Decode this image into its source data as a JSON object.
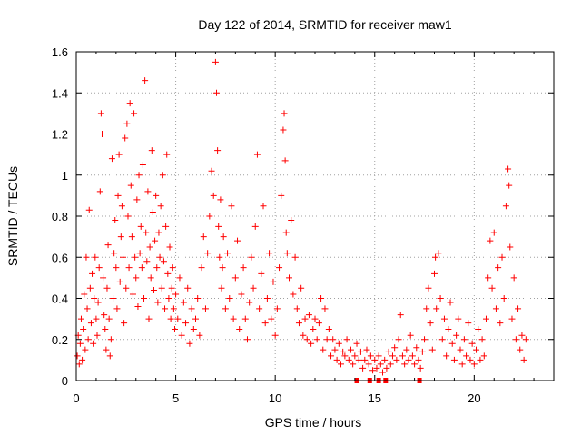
{
  "chart_data": {
    "type": "scatter",
    "title": "Day 122 of 2014, SRMTID for receiver maw1",
    "xlabel": "GPS time / hours",
    "ylabel": "SRMTID / TECUs",
    "xlim": [
      0,
      24
    ],
    "ylim": [
      0,
      1.6
    ],
    "x_ticks": [
      0,
      5,
      10,
      15,
      20
    ],
    "x_tick_labels": [
      "0",
      "5",
      "10",
      "15",
      "20"
    ],
    "y_ticks": [
      0,
      0.2,
      0.4,
      0.6,
      0.8,
      1,
      1.2,
      1.4,
      1.6
    ],
    "y_tick_labels": [
      "0",
      "0.2",
      "0.4",
      "0.6",
      "0.8",
      "1",
      "1.2",
      "1.4",
      "1.6"
    ],
    "grid": true,
    "marker": "plus",
    "color": "#ff0000",
    "series": [
      {
        "name": "SRMTID",
        "points": [
          [
            0.05,
            0.12
          ],
          [
            0.1,
            0.22
          ],
          [
            0.15,
            0.08
          ],
          [
            0.2,
            0.18
          ],
          [
            0.25,
            0.3
          ],
          [
            0.3,
            0.1
          ],
          [
            0.35,
            0.25
          ],
          [
            0.4,
            0.42
          ],
          [
            0.45,
            0.15
          ],
          [
            0.5,
            0.6
          ],
          [
            0.55,
            0.35
          ],
          [
            0.6,
            0.2
          ],
          [
            0.65,
            0.83
          ],
          [
            0.7,
            0.45
          ],
          [
            0.75,
            0.28
          ],
          [
            0.8,
            0.52
          ],
          [
            0.85,
            0.18
          ],
          [
            0.9,
            0.4
          ],
          [
            0.95,
            0.6
          ],
          [
            1.0,
            0.3
          ],
          [
            1.05,
            0.22
          ],
          [
            1.1,
            0.38
          ],
          [
            1.15,
            0.55
          ],
          [
            1.2,
            0.92
          ],
          [
            1.25,
            1.3
          ],
          [
            1.3,
            1.2
          ],
          [
            1.35,
            0.5
          ],
          [
            1.4,
            0.32
          ],
          [
            1.45,
            0.25
          ],
          [
            1.5,
            0.15
          ],
          [
            1.55,
            0.45
          ],
          [
            1.6,
            0.66
          ],
          [
            1.65,
            0.3
          ],
          [
            1.7,
            0.12
          ],
          [
            1.75,
            0.2
          ],
          [
            1.8,
            1.08
          ],
          [
            1.85,
            0.4
          ],
          [
            1.9,
            0.62
          ],
          [
            1.95,
            0.78
          ],
          [
            2.0,
            0.55
          ],
          [
            2.05,
            0.35
          ],
          [
            2.1,
            0.9
          ],
          [
            2.15,
            1.1
          ],
          [
            2.2,
            0.48
          ],
          [
            2.25,
            0.7
          ],
          [
            2.3,
            0.85
          ],
          [
            2.35,
            0.6
          ],
          [
            2.4,
            0.28
          ],
          [
            2.45,
            1.18
          ],
          [
            2.5,
            0.45
          ],
          [
            2.55,
            1.25
          ],
          [
            2.6,
            0.8
          ],
          [
            2.65,
            0.55
          ],
          [
            2.7,
            1.35
          ],
          [
            2.75,
            0.95
          ],
          [
            2.8,
            0.7
          ],
          [
            2.85,
            0.42
          ],
          [
            2.9,
            1.3
          ],
          [
            2.95,
            0.6
          ],
          [
            3.0,
            0.5
          ],
          [
            3.05,
            0.88
          ],
          [
            3.1,
            0.36
          ],
          [
            3.15,
            1.0
          ],
          [
            3.2,
            0.62
          ],
          [
            3.25,
            0.75
          ],
          [
            3.3,
            0.55
          ],
          [
            3.35,
            1.05
          ],
          [
            3.4,
            0.4
          ],
          [
            3.45,
            1.46
          ],
          [
            3.5,
            0.72
          ],
          [
            3.55,
            0.58
          ],
          [
            3.6,
            0.92
          ],
          [
            3.65,
            0.3
          ],
          [
            3.7,
            0.65
          ],
          [
            3.75,
            0.5
          ],
          [
            3.8,
            1.12
          ],
          [
            3.85,
            0.82
          ],
          [
            3.9,
            0.44
          ],
          [
            3.95,
            0.68
          ],
          [
            4.0,
            0.9
          ],
          [
            4.05,
            0.55
          ],
          [
            4.1,
            0.38
          ],
          [
            4.15,
            0.72
          ],
          [
            4.2,
            0.6
          ],
          [
            4.25,
            0.85
          ],
          [
            4.3,
            0.45
          ],
          [
            4.35,
            1.0
          ],
          [
            4.4,
            0.58
          ],
          [
            4.45,
            0.35
          ],
          [
            4.5,
            0.75
          ],
          [
            4.55,
            1.1
          ],
          [
            4.6,
            0.52
          ],
          [
            4.65,
            0.4
          ],
          [
            4.7,
            0.65
          ],
          [
            4.75,
            0.3
          ],
          [
            4.8,
            0.45
          ],
          [
            4.85,
            0.55
          ],
          [
            4.9,
            0.35
          ],
          [
            4.95,
            0.25
          ],
          [
            5.0,
            0.42
          ],
          [
            5.1,
            0.3
          ],
          [
            5.2,
            0.5
          ],
          [
            5.3,
            0.22
          ],
          [
            5.4,
            0.38
          ],
          [
            5.5,
            0.28
          ],
          [
            5.6,
            0.45
          ],
          [
            5.7,
            0.18
          ],
          [
            5.8,
            0.35
          ],
          [
            5.9,
            0.25
          ],
          [
            6.0,
            0.3
          ],
          [
            6.1,
            0.4
          ],
          [
            6.2,
            0.22
          ],
          [
            6.3,
            0.55
          ],
          [
            6.4,
            0.7
          ],
          [
            6.5,
            0.35
          ],
          [
            6.6,
            0.62
          ],
          [
            6.7,
            0.8
          ],
          [
            6.8,
            1.02
          ],
          [
            6.9,
            0.9
          ],
          [
            7.0,
            1.55
          ],
          [
            7.05,
            1.4
          ],
          [
            7.1,
            1.12
          ],
          [
            7.15,
            0.75
          ],
          [
            7.2,
            0.6
          ],
          [
            7.25,
            0.88
          ],
          [
            7.3,
            0.45
          ],
          [
            7.35,
            0.55
          ],
          [
            7.4,
            0.7
          ],
          [
            7.5,
            0.35
          ],
          [
            7.6,
            0.62
          ],
          [
            7.7,
            0.4
          ],
          [
            7.8,
            0.85
          ],
          [
            7.9,
            0.3
          ],
          [
            8.0,
            0.5
          ],
          [
            8.1,
            0.68
          ],
          [
            8.2,
            0.25
          ],
          [
            8.3,
            0.42
          ],
          [
            8.4,
            0.55
          ],
          [
            8.5,
            0.3
          ],
          [
            8.6,
            0.2
          ],
          [
            8.7,
            0.38
          ],
          [
            8.8,
            0.6
          ],
          [
            8.9,
            0.45
          ],
          [
            9.0,
            0.75
          ],
          [
            9.1,
            1.1
          ],
          [
            9.2,
            0.35
          ],
          [
            9.3,
            0.52
          ],
          [
            9.4,
            0.85
          ],
          [
            9.5,
            0.28
          ],
          [
            9.6,
            0.4
          ],
          [
            9.7,
            0.62
          ],
          [
            9.8,
            0.3
          ],
          [
            9.9,
            0.48
          ],
          [
            10.0,
            0.22
          ],
          [
            10.1,
            0.35
          ],
          [
            10.2,
            0.55
          ],
          [
            10.3,
            0.9
          ],
          [
            10.4,
            1.22
          ],
          [
            10.45,
            1.3
          ],
          [
            10.5,
            1.07
          ],
          [
            10.55,
            0.72
          ],
          [
            10.6,
            0.62
          ],
          [
            10.7,
            0.5
          ],
          [
            10.8,
            0.78
          ],
          [
            10.9,
            0.42
          ],
          [
            11.0,
            0.6
          ],
          [
            11.1,
            0.35
          ],
          [
            11.2,
            0.28
          ],
          [
            11.3,
            0.45
          ],
          [
            11.4,
            0.22
          ],
          [
            11.5,
            0.3
          ],
          [
            11.6,
            0.2
          ],
          [
            11.7,
            0.32
          ],
          [
            11.8,
            0.18
          ],
          [
            11.9,
            0.25
          ],
          [
            12.0,
            0.3
          ],
          [
            12.1,
            0.2
          ],
          [
            12.2,
            0.28
          ],
          [
            12.3,
            0.4
          ],
          [
            12.4,
            0.15
          ],
          [
            12.5,
            0.35
          ],
          [
            12.6,
            0.2
          ],
          [
            12.7,
            0.25
          ],
          [
            12.8,
            0.12
          ],
          [
            12.9,
            0.2
          ],
          [
            13.0,
            0.15
          ],
          [
            13.1,
            0.1
          ],
          [
            13.2,
            0.18
          ],
          [
            13.3,
            0.08
          ],
          [
            13.4,
            0.14
          ],
          [
            13.5,
            0.12
          ],
          [
            13.6,
            0.2
          ],
          [
            13.7,
            0.1
          ],
          [
            13.8,
            0.15
          ],
          [
            13.9,
            0.08
          ],
          [
            14.0,
            0.12
          ],
          [
            14.1,
            0.18
          ],
          [
            14.2,
            0.1
          ],
          [
            14.3,
            0.14
          ],
          [
            14.4,
            0.06
          ],
          [
            14.5,
            0.1
          ],
          [
            14.6,
            0.15
          ],
          [
            14.7,
            0.08
          ],
          [
            14.8,
            0.12
          ],
          [
            14.9,
            0.05
          ],
          [
            15.0,
            0.1
          ],
          [
            15.1,
            0.06
          ],
          [
            15.2,
            0.12
          ],
          [
            15.3,
            0.08
          ],
          [
            15.4,
            0.04
          ],
          [
            15.5,
            0.1
          ],
          [
            15.6,
            0.06
          ],
          [
            15.7,
            0.14
          ],
          [
            15.8,
            0.08
          ],
          [
            15.9,
            0.12
          ],
          [
            16.0,
            0.16
          ],
          [
            16.1,
            0.1
          ],
          [
            16.2,
            0.2
          ],
          [
            16.3,
            0.32
          ],
          [
            16.4,
            0.12
          ],
          [
            16.5,
            0.08
          ],
          [
            16.6,
            0.15
          ],
          [
            16.7,
            0.1
          ],
          [
            16.8,
            0.22
          ],
          [
            16.9,
            0.12
          ],
          [
            17.0,
            0.08
          ],
          [
            17.1,
            0.16
          ],
          [
            17.2,
            0.1
          ],
          [
            17.3,
            0.06
          ],
          [
            17.4,
            0.14
          ],
          [
            17.5,
            0.2
          ],
          [
            17.6,
            0.35
          ],
          [
            17.7,
            0.45
          ],
          [
            17.8,
            0.28
          ],
          [
            17.9,
            0.15
          ],
          [
            18.0,
            0.52
          ],
          [
            18.05,
            0.6
          ],
          [
            18.1,
            0.35
          ],
          [
            18.2,
            0.62
          ],
          [
            18.3,
            0.4
          ],
          [
            18.4,
            0.2
          ],
          [
            18.5,
            0.3
          ],
          [
            18.6,
            0.12
          ],
          [
            18.7,
            0.25
          ],
          [
            18.8,
            0.38
          ],
          [
            18.9,
            0.18
          ],
          [
            19.0,
            0.1
          ],
          [
            19.1,
            0.22
          ],
          [
            19.2,
            0.3
          ],
          [
            19.3,
            0.15
          ],
          [
            19.4,
            0.08
          ],
          [
            19.5,
            0.2
          ],
          [
            19.6,
            0.12
          ],
          [
            19.7,
            0.28
          ],
          [
            19.8,
            0.1
          ],
          [
            19.9,
            0.18
          ],
          [
            20.0,
            0.08
          ],
          [
            20.1,
            0.15
          ],
          [
            20.2,
            0.25
          ],
          [
            20.3,
            0.1
          ],
          [
            20.4,
            0.2
          ],
          [
            20.5,
            0.12
          ],
          [
            20.6,
            0.3
          ],
          [
            20.7,
            0.5
          ],
          [
            20.8,
            0.68
          ],
          [
            20.9,
            0.45
          ],
          [
            21.0,
            0.72
          ],
          [
            21.1,
            0.35
          ],
          [
            21.2,
            0.55
          ],
          [
            21.3,
            0.28
          ],
          [
            21.4,
            0.6
          ],
          [
            21.5,
            0.4
          ],
          [
            21.6,
            0.85
          ],
          [
            21.7,
            1.03
          ],
          [
            21.75,
            0.95
          ],
          [
            21.8,
            0.65
          ],
          [
            21.9,
            0.3
          ],
          [
            22.0,
            0.5
          ],
          [
            22.1,
            0.2
          ],
          [
            22.2,
            0.35
          ],
          [
            22.3,
            0.15
          ],
          [
            22.4,
            0.22
          ],
          [
            22.5,
            0.1
          ],
          [
            22.6,
            0.2
          ]
        ]
      }
    ],
    "gap_markers_x": [
      14.1,
      14.75,
      15.2,
      15.55,
      17.25
    ]
  }
}
